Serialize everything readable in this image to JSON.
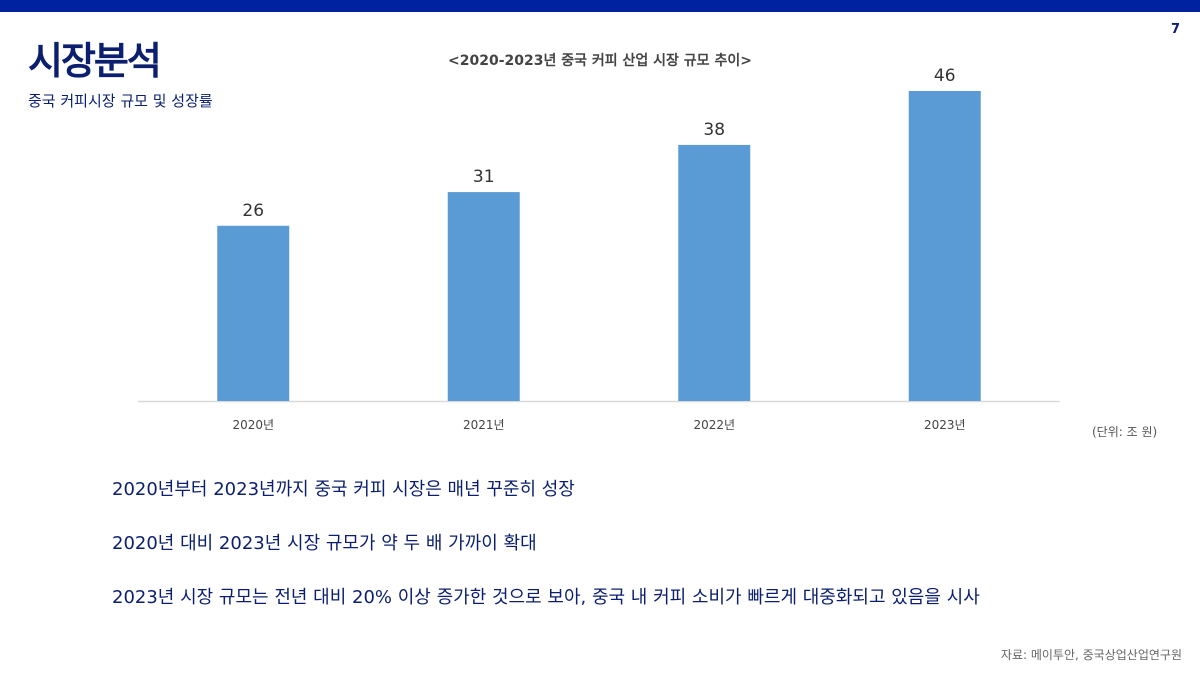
{
  "slide": {
    "page_number": "7",
    "title": "시장분석",
    "subtitle": "중국 커피시장 규모 및 성장률",
    "accent_color": "#0021a0",
    "bullets": [
      "2020년부터 2023년까지 중국 커피 시장은 매년 꾸준히 성장",
      "2020년 대비 2023년 시장 규모가 약 두 배 가까이 확대",
      "2023년 시장 규모는 전년 대비 20% 이상 증가한 것으로 보아, 중국 내 커피 소비가 빠르게 대중화되고 있음을 시사"
    ],
    "source": "자료: 메이투안, 중국상업산업연구원"
  },
  "chart_data": {
    "type": "bar",
    "title": "<2020-2023년 중국 커피 산업 시장 규모 추이>",
    "categories": [
      "2020년",
      "2021년",
      "2022년",
      "2023년"
    ],
    "values": [
      26,
      31,
      38,
      46
    ],
    "unit_note": "(단위: 조 원)",
    "xlabel": "",
    "ylabel": "",
    "ylim": [
      0,
      46
    ],
    "grid": false,
    "data_labels": true,
    "bar_color": "#5b9bd5"
  }
}
